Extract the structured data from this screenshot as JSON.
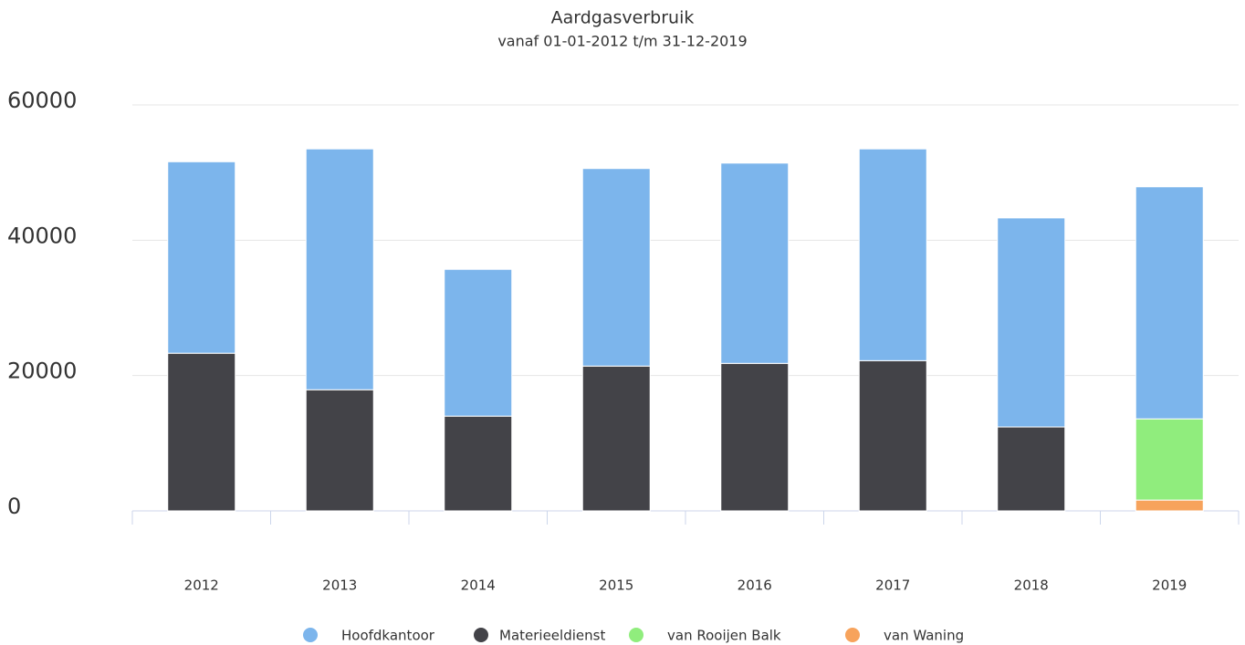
{
  "chart_data": {
    "type": "stacked_bar",
    "title": "Aardgasverbruik",
    "subtitle": "vanaf 01-01-2012 t/m 31-12-2019",
    "categories": [
      "2012",
      "2013",
      "2014",
      "2015",
      "2016",
      "2017",
      "2018",
      "2019"
    ],
    "series": [
      {
        "name": "Hoofdkantoor",
        "color": "#7cb5ec",
        "values": [
          28300,
          35600,
          21700,
          29200,
          29600,
          31300,
          30900,
          34300
        ]
      },
      {
        "name": "Materieeldienst",
        "color": "#434348",
        "values": [
          23300,
          17900,
          14000,
          21400,
          21800,
          22200,
          12400,
          0
        ]
      },
      {
        "name": "van Rooijen Balk",
        "color": "#90ed7d",
        "values": [
          0,
          0,
          0,
          0,
          0,
          0,
          0,
          12000
        ]
      },
      {
        "name": "van Waning",
        "color": "#f7a35c",
        "values": [
          0,
          0,
          0,
          0,
          0,
          0,
          0,
          1600
        ]
      }
    ],
    "ylim": [
      0,
      60000
    ],
    "yticks": [
      0,
      20000,
      40000,
      60000
    ],
    "grid": true,
    "legend": "bottom"
  }
}
